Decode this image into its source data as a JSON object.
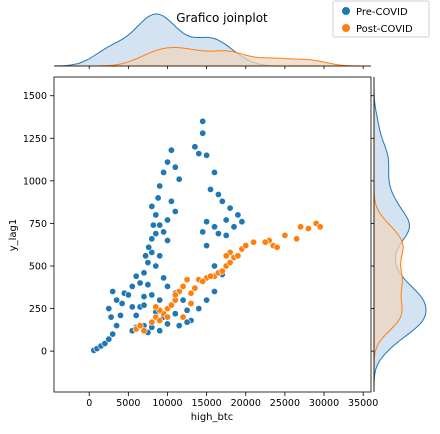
{
  "chart_data": {
    "type": "scatter",
    "title": "Grafico joinplot",
    "xlabel": "high_btc",
    "ylabel": "y_lag1",
    "xlim": [
      -4500,
      36000
    ],
    "ylim": [
      -240,
      1610
    ],
    "xticks": [
      0,
      5000,
      10000,
      15000,
      20000,
      25000,
      30000,
      35000
    ],
    "yticks": [
      0,
      250,
      500,
      750,
      1000,
      1250,
      1500
    ],
    "grid": false,
    "legend_position": "top-right",
    "marginals": "kde",
    "series": [
      {
        "name": "Pre-COVID",
        "color": "#1f77b4",
        "fill": "#c6d9ec",
        "points": [
          [
            600,
            5
          ],
          [
            1000,
            15
          ],
          [
            1500,
            30
          ],
          [
            2000,
            45
          ],
          [
            2500,
            70
          ],
          [
            3000,
            100
          ],
          [
            3500,
            150
          ],
          [
            4000,
            210
          ],
          [
            4200,
            280
          ],
          [
            4500,
            340
          ],
          [
            5000,
            330
          ],
          [
            5500,
            260
          ],
          [
            6000,
            210
          ],
          [
            6500,
            260
          ],
          [
            7000,
            320
          ],
          [
            7500,
            390
          ],
          [
            7000,
            460
          ],
          [
            7500,
            520
          ],
          [
            8000,
            580
          ],
          [
            8000,
            660
          ],
          [
            8200,
            740
          ],
          [
            8500,
            800
          ],
          [
            8000,
            850
          ],
          [
            8800,
            900
          ],
          [
            9000,
            970
          ],
          [
            9500,
            1050
          ],
          [
            10000,
            1110
          ],
          [
            10500,
            1180
          ],
          [
            11000,
            1080
          ],
          [
            11500,
            1010
          ],
          [
            10500,
            880
          ],
          [
            11000,
            820
          ],
          [
            10000,
            770
          ],
          [
            9500,
            700
          ],
          [
            10000,
            650
          ],
          [
            9000,
            560
          ],
          [
            8500,
            500
          ],
          [
            9500,
            430
          ],
          [
            10000,
            380
          ],
          [
            11000,
            340
          ],
          [
            12000,
            300
          ],
          [
            12500,
            240
          ],
          [
            12000,
            200
          ],
          [
            13000,
            180
          ],
          [
            14000,
            250
          ],
          [
            15000,
            300
          ],
          [
            16000,
            350
          ],
          [
            17000,
            450
          ],
          [
            16000,
            500
          ],
          [
            14500,
            1280
          ],
          [
            14500,
            1350
          ],
          [
            13500,
            1200
          ],
          [
            14000,
            1160
          ],
          [
            15000,
            1150
          ],
          [
            16000,
            1050
          ],
          [
            15500,
            950
          ],
          [
            16500,
            920
          ],
          [
            17000,
            880
          ],
          [
            18000,
            840
          ],
          [
            17500,
            770
          ],
          [
            18500,
            730
          ],
          [
            19000,
            800
          ],
          [
            19500,
            760
          ],
          [
            16000,
            730
          ],
          [
            15000,
            760
          ],
          [
            14500,
            700
          ],
          [
            16500,
            690
          ],
          [
            17500,
            680
          ],
          [
            15000,
            620
          ],
          [
            5500,
            120
          ],
          [
            6000,
            140
          ],
          [
            7000,
            150
          ],
          [
            7500,
            110
          ],
          [
            8000,
            140
          ],
          [
            9000,
            120
          ],
          [
            10000,
            160
          ],
          [
            9500,
            200
          ],
          [
            11000,
            220
          ],
          [
            11500,
            150
          ],
          [
            12500,
            170
          ],
          [
            3000,
            350
          ],
          [
            3500,
            300
          ],
          [
            2500,
            250
          ],
          [
            2800,
            200
          ],
          [
            5500,
            380
          ],
          [
            7000,
            270
          ],
          [
            8000,
            330
          ],
          [
            9000,
            300
          ],
          [
            8500,
            230
          ],
          [
            6000,
            440
          ],
          [
            6500,
            400
          ],
          [
            7200,
            560
          ],
          [
            7600,
            610
          ],
          [
            8500,
            690
          ],
          [
            9000,
            740
          ]
        ]
      },
      {
        "name": "Post-COVID",
        "color": "#ff7f0e",
        "fill": "#eed7c0",
        "points": [
          [
            6000,
            130
          ],
          [
            6500,
            150
          ],
          [
            7000,
            120
          ],
          [
            8000,
            170
          ],
          [
            8500,
            200
          ],
          [
            9000,
            180
          ],
          [
            9500,
            220
          ],
          [
            10000,
            250
          ],
          [
            10500,
            270
          ],
          [
            11000,
            300
          ],
          [
            11500,
            350
          ],
          [
            12000,
            380
          ],
          [
            12500,
            420
          ],
          [
            11000,
            330
          ],
          [
            10000,
            200
          ],
          [
            9000,
            240
          ],
          [
            8500,
            260
          ],
          [
            13000,
            340
          ],
          [
            13500,
            370
          ],
          [
            14000,
            420
          ],
          [
            15000,
            430
          ],
          [
            16000,
            440
          ],
          [
            16500,
            460
          ],
          [
            17000,
            470
          ],
          [
            17500,
            500
          ],
          [
            18000,
            520
          ],
          [
            18500,
            550
          ],
          [
            19000,
            560
          ],
          [
            19500,
            600
          ],
          [
            18000,
            580
          ],
          [
            17500,
            560
          ],
          [
            20000,
            620
          ],
          [
            21000,
            640
          ],
          [
            23000,
            650
          ],
          [
            23500,
            620
          ],
          [
            24000,
            610
          ],
          [
            25000,
            680
          ],
          [
            27000,
            730
          ],
          [
            28000,
            720
          ],
          [
            29000,
            750
          ],
          [
            29500,
            730
          ],
          [
            26500,
            660
          ],
          [
            22500,
            640
          ],
          [
            14500,
            410
          ],
          [
            15500,
            440
          ],
          [
            12000,
            200
          ],
          [
            13000,
            280
          ]
        ]
      }
    ]
  }
}
